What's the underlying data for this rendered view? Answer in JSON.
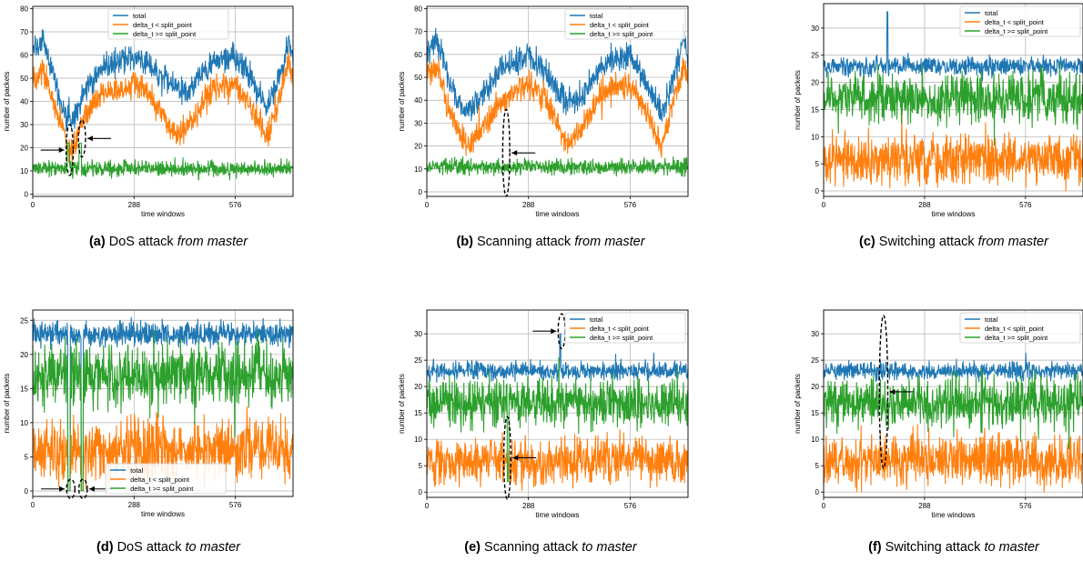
{
  "figure": {
    "panels": [
      {
        "id": "a",
        "letter": "(a)",
        "title": "DoS attack",
        "suffix": "from master"
      },
      {
        "id": "b",
        "letter": "(b)",
        "title": "Scanning attack",
        "suffix": "from master"
      },
      {
        "id": "c",
        "letter": "(c)",
        "title": "Switching attack",
        "suffix": "from master"
      },
      {
        "id": "d",
        "letter": "(d)",
        "title": "DoS attack",
        "suffix": "to master"
      },
      {
        "id": "e",
        "letter": "(e)",
        "title": "Scanning attack",
        "suffix": "to master"
      },
      {
        "id": "f",
        "letter": "(f)",
        "title": "Switching attack",
        "suffix": "to master"
      }
    ]
  },
  "colors": {
    "total": "#1f77b4",
    "below": "#ff7f0e",
    "above": "#2ca02c",
    "grid": "#b0b0b0"
  },
  "chart_data": [
    {
      "type": "line",
      "panel": "a",
      "xlabel": "time windows",
      "ylabel": "number of packets",
      "xlim": [
        0,
        740
      ],
      "ylim": [
        -1,
        81
      ],
      "xticks": [
        0,
        288,
        576
      ],
      "yticks": [
        0,
        10,
        20,
        30,
        40,
        50,
        60,
        70,
        80
      ],
      "legend": "top-center",
      "series": [
        {
          "name": "total",
          "key": "total",
          "points": [
            [
              0,
              62
            ],
            [
              30,
              66
            ],
            [
              60,
              50
            ],
            [
              90,
              36
            ],
            [
              110,
              30
            ],
            [
              130,
              38
            ],
            [
              150,
              46
            ],
            [
              200,
              55
            ],
            [
              260,
              58
            ],
            [
              288,
              60
            ],
            [
              330,
              56
            ],
            [
              370,
              50
            ],
            [
              400,
              46
            ],
            [
              440,
              44
            ],
            [
              500,
              55
            ],
            [
              540,
              58
            ],
            [
              576,
              60
            ],
            [
              610,
              52
            ],
            [
              640,
              45
            ],
            [
              665,
              37
            ],
            [
              690,
              46
            ],
            [
              715,
              58
            ],
            [
              728,
              68
            ],
            [
              740,
              58
            ]
          ],
          "noise": 5
        },
        {
          "name": "delta_t < split_point",
          "key": "below",
          "points": [
            [
              0,
              51
            ],
            [
              30,
              52
            ],
            [
              60,
              40
            ],
            [
              90,
              25
            ],
            [
              110,
              18
            ],
            [
              130,
              27
            ],
            [
              150,
              35
            ],
            [
              200,
              43
            ],
            [
              260,
              46
            ],
            [
              288,
              48
            ],
            [
              330,
              43
            ],
            [
              370,
              35
            ],
            [
              400,
              26
            ],
            [
              440,
              28
            ],
            [
              500,
              43
            ],
            [
              540,
              46
            ],
            [
              576,
              48
            ],
            [
              610,
              40
            ],
            [
              640,
              32
            ],
            [
              665,
              24
            ],
            [
              690,
              35
            ],
            [
              715,
              48
            ],
            [
              728,
              58
            ],
            [
              740,
              47
            ]
          ],
          "noise": 5
        },
        {
          "name": "delta_t >= split_point",
          "key": "above",
          "points": [
            [
              0,
              11
            ],
            [
              740,
              11
            ]
          ],
          "noise": 3,
          "spikes": [
            [
              98,
              104,
              22
            ],
            [
              132,
              138,
              22
            ]
          ]
        }
      ],
      "annotations": [
        {
          "type": "ellipse",
          "x": 105,
          "y": 19,
          "rx": 10,
          "ry": 11,
          "arrow_from": "left"
        },
        {
          "type": "ellipse",
          "x": 140,
          "y": 24,
          "rx": 10,
          "ry": 8,
          "arrow_from": "right"
        }
      ]
    },
    {
      "type": "line",
      "panel": "b",
      "xlabel": "time windows",
      "ylabel": "number of packets",
      "xlim": [
        0,
        740
      ],
      "ylim": [
        -2,
        81
      ],
      "xticks": [
        0,
        288,
        576
      ],
      "yticks": [
        0,
        10,
        20,
        30,
        40,
        50,
        60,
        70,
        80
      ],
      "legend": "top-right",
      "series": [
        {
          "name": "total",
          "key": "total",
          "points": [
            [
              0,
              62
            ],
            [
              30,
              66
            ],
            [
              60,
              50
            ],
            [
              90,
              38
            ],
            [
              120,
              34
            ],
            [
              160,
              42
            ],
            [
              200,
              52
            ],
            [
              260,
              58
            ],
            [
              288,
              59
            ],
            [
              330,
              54
            ],
            [
              370,
              44
            ],
            [
              400,
              38
            ],
            [
              440,
              42
            ],
            [
              500,
              56
            ],
            [
              540,
              58
            ],
            [
              576,
              60
            ],
            [
              610,
              50
            ],
            [
              640,
              42
            ],
            [
              665,
              34
            ],
            [
              690,
              46
            ],
            [
              715,
              58
            ],
            [
              728,
              68
            ],
            [
              740,
              58
            ]
          ],
          "noise": 5
        },
        {
          "name": "delta_t < split_point",
          "key": "below",
          "points": [
            [
              0,
              52
            ],
            [
              30,
              54
            ],
            [
              60,
              38
            ],
            [
              90,
              26
            ],
            [
              120,
              20
            ],
            [
              160,
              28
            ],
            [
              200,
              38
            ],
            [
              260,
              45
            ],
            [
              288,
              47
            ],
            [
              330,
              42
            ],
            [
              370,
              30
            ],
            [
              400,
              20
            ],
            [
              440,
              28
            ],
            [
              500,
              44
            ],
            [
              540,
              46
            ],
            [
              576,
              47
            ],
            [
              610,
              38
            ],
            [
              640,
              28
            ],
            [
              665,
              20
            ],
            [
              690,
              35
            ],
            [
              715,
              48
            ],
            [
              728,
              58
            ],
            [
              740,
              47
            ]
          ],
          "noise": 5
        },
        {
          "name": "delta_t >= split_point",
          "key": "above",
          "points": [
            [
              0,
              11
            ],
            [
              740,
              11
            ]
          ],
          "noise": 3
        }
      ],
      "annotations": [
        {
          "type": "ellipse",
          "x": 225,
          "y": 17,
          "rx": 10,
          "ry": 19,
          "arrow_from": "right"
        }
      ]
    },
    {
      "type": "line",
      "panel": "c",
      "xlabel": "time windows",
      "ylabel": "number of packets",
      "xlim": [
        0,
        740
      ],
      "ylim": [
        -1,
        34.5
      ],
      "xticks": [
        0,
        288,
        576
      ],
      "yticks": [
        0,
        5,
        10,
        15,
        20,
        25,
        30
      ],
      "legend": "top-right",
      "series": [
        {
          "name": "total",
          "key": "total",
          "points": [
            [
              0,
              23
            ],
            [
              740,
              23
            ]
          ],
          "noise": 1.5,
          "spikes": [
            [
              181,
              183,
              33
            ]
          ]
        },
        {
          "name": "delta_t < split_point",
          "key": "below",
          "points": [
            [
              0,
              6
            ],
            [
              740,
              6
            ]
          ],
          "noise": 4
        },
        {
          "name": "delta_t >= split_point",
          "key": "above",
          "points": [
            [
              0,
              17
            ],
            [
              740,
              17
            ]
          ],
          "noise": 4
        }
      ],
      "annotations": []
    },
    {
      "type": "line",
      "panel": "d",
      "xlabel": "time windows",
      "ylabel": "number of packets",
      "xlim": [
        0,
        740
      ],
      "ylim": [
        -0.8,
        26.5
      ],
      "xticks": [
        0,
        288,
        576
      ],
      "yticks": [
        0,
        5,
        10,
        15,
        20,
        25
      ],
      "legend": "bottom-center",
      "series": [
        {
          "name": "total",
          "key": "total",
          "points": [
            [
              0,
              23
            ],
            [
              740,
              23
            ]
          ],
          "noise": 1.5,
          "dips": [
            [
              100,
              106,
              0
            ],
            [
              138,
              143,
              0
            ]
          ]
        },
        {
          "name": "delta_t < split_point",
          "key": "below",
          "points": [
            [
              0,
              6
            ],
            [
              740,
              6
            ]
          ],
          "noise": 4,
          "dips": [
            [
              100,
              106,
              0
            ],
            [
              138,
              143,
              0
            ]
          ]
        },
        {
          "name": "delta_t >= split_point",
          "key": "above",
          "points": [
            [
              0,
              17
            ],
            [
              740,
              17
            ]
          ],
          "noise": 4,
          "dips": [
            [
              100,
              106,
              0
            ],
            [
              138,
              143,
              0
            ]
          ]
        }
      ],
      "annotations": [
        {
          "type": "ellipse",
          "x": 108,
          "y": 0.3,
          "rx": 12,
          "ry": 1.4,
          "arrow_from": "left"
        },
        {
          "type": "ellipse",
          "x": 143,
          "y": 0.3,
          "rx": 12,
          "ry": 1.4,
          "arrow_from": "right"
        }
      ]
    },
    {
      "type": "line",
      "panel": "e",
      "xlabel": "time windows",
      "ylabel": "number of packets",
      "xlim": [
        0,
        740
      ],
      "ylim": [
        -1,
        34.5
      ],
      "xticks": [
        0,
        288,
        576
      ],
      "yticks": [
        0,
        5,
        10,
        15,
        20,
        25,
        30
      ],
      "legend": "top-right",
      "series": [
        {
          "name": "total",
          "key": "total",
          "points": [
            [
              0,
              23
            ],
            [
              740,
              23
            ]
          ],
          "noise": 1.5,
          "spikes": [
            [
              377,
              379,
              30
            ]
          ]
        },
        {
          "name": "delta_t < split_point",
          "key": "below",
          "points": [
            [
              0,
              6
            ],
            [
              740,
              6
            ]
          ],
          "noise": 4
        },
        {
          "name": "delta_t >= split_point",
          "key": "above",
          "points": [
            [
              0,
              17
            ],
            [
              740,
              17
            ]
          ],
          "noise": 4,
          "spikes": [
            [
              228,
              232,
              2
            ]
          ]
        }
      ],
      "annotations": [
        {
          "type": "ellipse",
          "x": 382,
          "y": 30.5,
          "rx": 10,
          "ry": 3.3,
          "arrow_from": "left"
        },
        {
          "type": "ellipse",
          "x": 228,
          "y": 6.5,
          "rx": 10,
          "ry": 7.8,
          "arrow_from": "right"
        }
      ]
    },
    {
      "type": "line",
      "panel": "f",
      "xlabel": "time windows",
      "ylabel": "number of packets",
      "xlim": [
        0,
        740
      ],
      "ylim": [
        -1,
        34.5
      ],
      "xticks": [
        0,
        288,
        576
      ],
      "yticks": [
        0,
        5,
        10,
        15,
        20,
        25,
        30
      ],
      "legend": "top-right",
      "series": [
        {
          "name": "total",
          "key": "total",
          "points": [
            [
              0,
              23
            ],
            [
              740,
              23
            ]
          ],
          "noise": 1.5
        },
        {
          "name": "delta_t < split_point",
          "key": "below",
          "points": [
            [
              0,
              6
            ],
            [
              740,
              6
            ]
          ],
          "noise": 4
        },
        {
          "name": "delta_t >= split_point",
          "key": "above",
          "points": [
            [
              0,
              17
            ],
            [
              740,
              17
            ]
          ],
          "noise": 4
        }
      ],
      "annotations": [
        {
          "type": "ellipse",
          "x": 171,
          "y": 19,
          "rx": 12,
          "ry": 14.5,
          "arrow_from": "right"
        }
      ]
    }
  ]
}
